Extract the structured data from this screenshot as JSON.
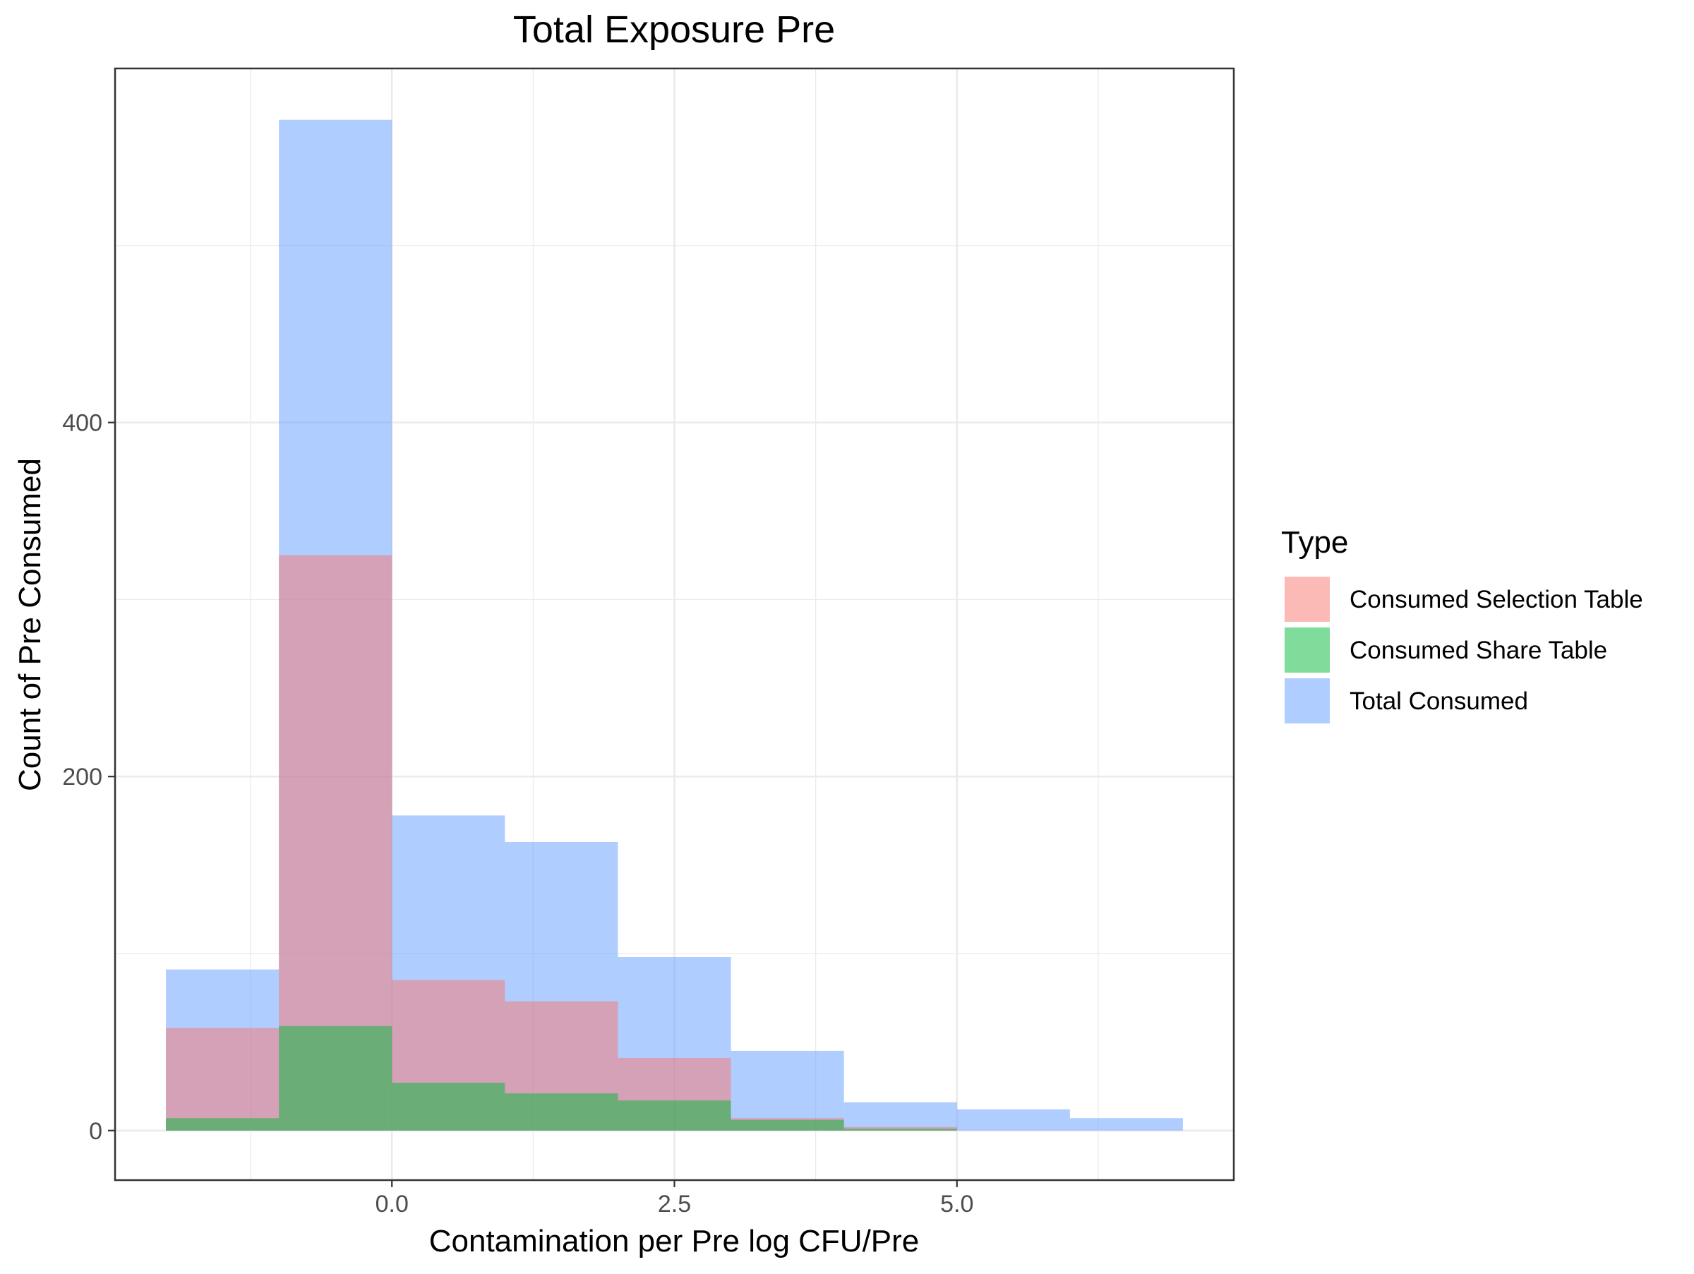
{
  "chart_data": {
    "type": "bar",
    "title": "Total Exposure Pre",
    "xlabel": "Contamination per Pre log CFU/Pre",
    "ylabel": "Count of Pre Consumed",
    "xlim": [
      -2.45,
      7.45
    ],
    "ylim": [
      -28,
      600
    ],
    "x_ticks": [
      {
        "value": 0,
        "label": "0.0"
      },
      {
        "value": 2.5,
        "label": "2.5"
      },
      {
        "value": 5,
        "label": "5.0"
      }
    ],
    "y_ticks": [
      {
        "value": 0,
        "label": "0"
      },
      {
        "value": 200,
        "label": "200"
      },
      {
        "value": 400,
        "label": "400"
      }
    ],
    "grid": true,
    "legend_title": "Type",
    "legend_position": "right",
    "bin_edges": [
      -2,
      -1,
      0,
      1,
      2,
      3,
      4,
      5,
      6,
      7
    ],
    "series": [
      {
        "name": "Total Consumed",
        "color": "#619CFF",
        "values": [
          91,
          571,
          178,
          163,
          98,
          45,
          16,
          12,
          7
        ]
      },
      {
        "name": "Consumed Selection Table",
        "color": "#F8766D",
        "values": [
          58,
          325,
          85,
          73,
          41,
          7,
          2,
          0,
          0
        ]
      },
      {
        "name": "Consumed Share Table",
        "color": "#00BA38",
        "values": [
          7,
          59,
          27,
          21,
          17,
          6,
          1,
          0,
          0
        ]
      }
    ],
    "legend_order": [
      "Consumed Selection Table",
      "Consumed Share Table",
      "Total Consumed"
    ]
  }
}
